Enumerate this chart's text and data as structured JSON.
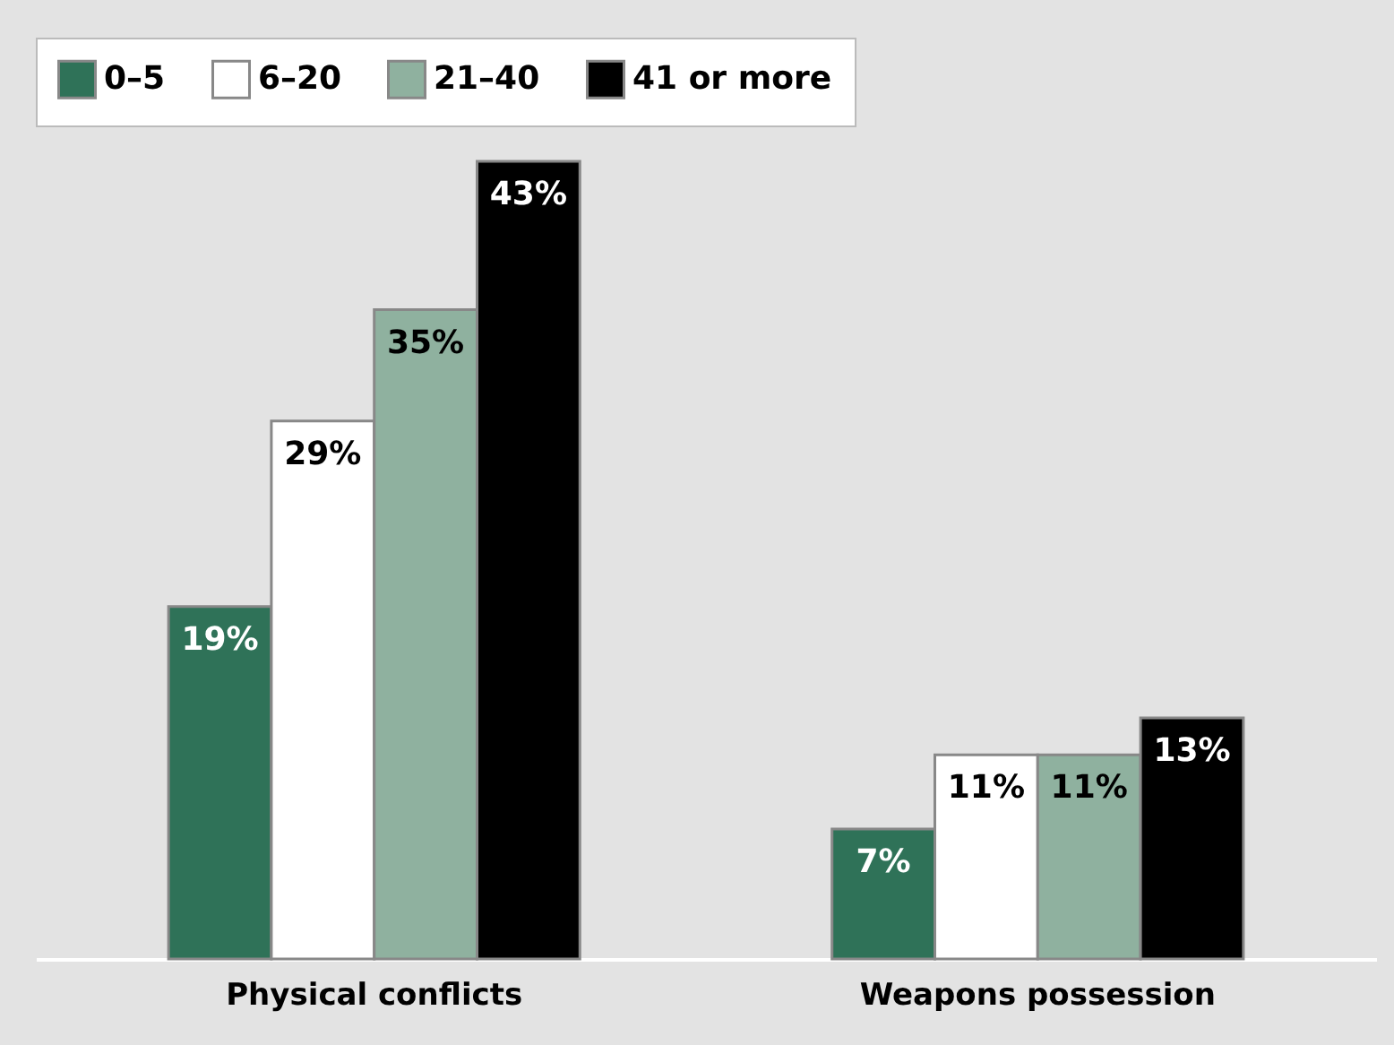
{
  "chart_data": {
    "type": "bar",
    "categories": [
      "Physical conflicts",
      "Weapons possession"
    ],
    "legend": "top",
    "grid": false,
    "series": [
      {
        "name": "0–5",
        "color": "#2f7258",
        "values": [
          19,
          7
        ],
        "value_labels": [
          "19%",
          "7%"
        ]
      },
      {
        "name": "6–20",
        "color": "#ffffff",
        "values": [
          29,
          11
        ],
        "value_labels": [
          "29%",
          "11%"
        ]
      },
      {
        "name": "21–40",
        "color": "#8fb19f",
        "values": [
          35,
          11
        ],
        "value_labels": [
          "35%",
          "11%"
        ]
      },
      {
        "name": "41 or more",
        "color": "#000000",
        "values": [
          43,
          13
        ],
        "value_labels": [
          "43%",
          "13%"
        ]
      }
    ]
  }
}
